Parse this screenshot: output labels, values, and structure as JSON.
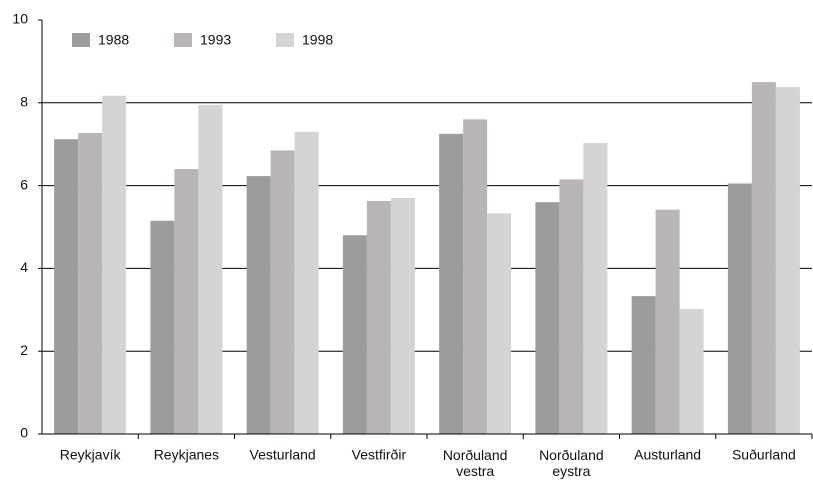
{
  "chart_data": {
    "type": "bar",
    "categories": [
      "Reykjavík",
      "Reykjanes",
      "Vesturland",
      "Vestfirðir",
      "Norðuland vestra",
      "Norðuland eystra",
      "Austurland",
      "Suðurland"
    ],
    "series": [
      {
        "name": "1988",
        "color": "#9d9c9c",
        "values": [
          7.12,
          5.15,
          6.23,
          4.8,
          7.25,
          5.6,
          3.33,
          6.05
        ]
      },
      {
        "name": "1993",
        "color": "#b9b5b5",
        "values": [
          7.27,
          6.4,
          6.85,
          5.63,
          7.6,
          6.15,
          5.42,
          8.5
        ]
      },
      {
        "name": "1998",
        "color": "#d4d3d5",
        "values": [
          8.17,
          7.95,
          7.3,
          5.7,
          5.33,
          7.03,
          3.02,
          8.38
        ]
      }
    ],
    "ylim": [
      0,
      10
    ],
    "yticks": [
      0,
      2,
      4,
      6,
      8,
      10
    ],
    "grid": true,
    "legend": "top-left"
  }
}
